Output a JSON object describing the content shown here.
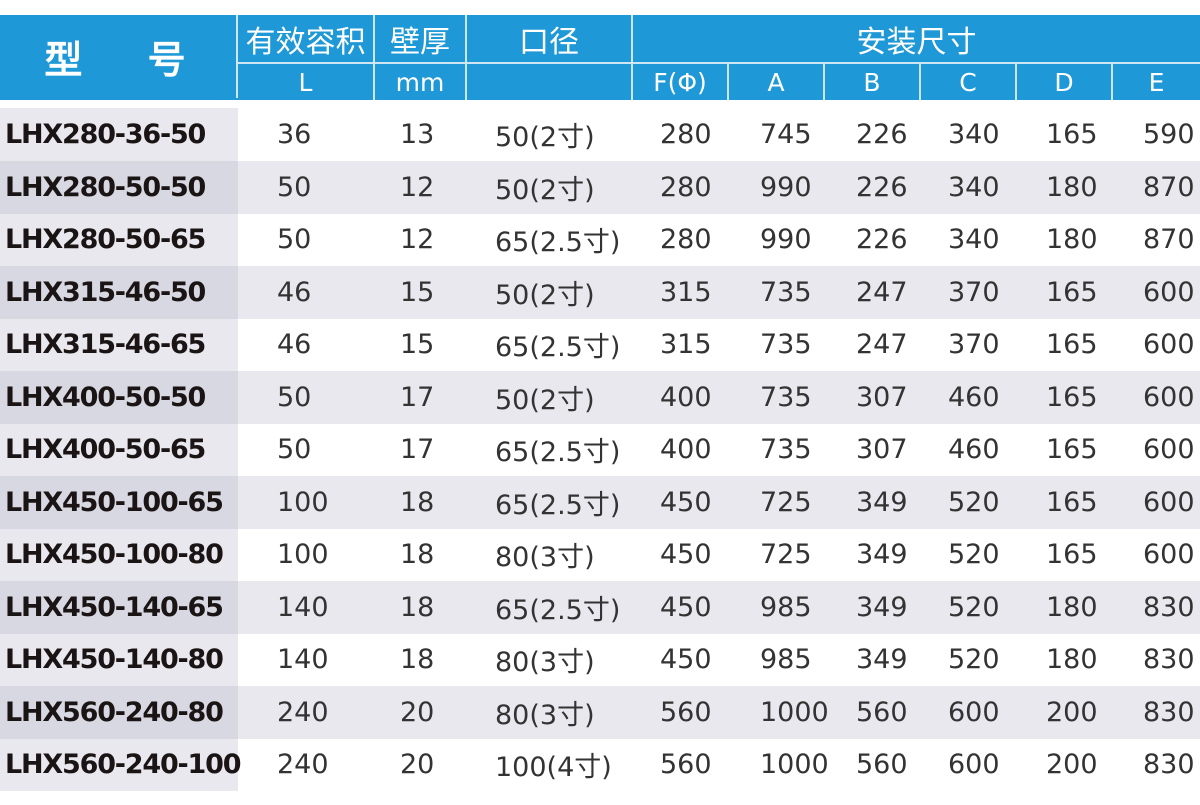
{
  "header": {
    "model": "型 号",
    "volume": "有效容积",
    "volume_unit": "L",
    "thickness": "壁厚",
    "thickness_unit": "mm",
    "port": "口径",
    "install": "安装尺寸",
    "install_cols": [
      "F(Φ)",
      "A",
      "B",
      "C",
      "D",
      "E"
    ]
  },
  "colors": {
    "header_bg": "#1e98d6",
    "row_alt": "#e9e8ee",
    "model_col": "#d8d8e2"
  },
  "rows": [
    [
      "LHX280-36-50",
      "36",
      "13",
      "50(2寸)",
      "280",
      "745",
      "226",
      "340",
      "165",
      "590"
    ],
    [
      "LHX280-50-50",
      "50",
      "12",
      "50(2寸)",
      "280",
      "990",
      "226",
      "340",
      "180",
      "870"
    ],
    [
      "LHX280-50-65",
      "50",
      "12",
      "65(2.5寸)",
      "280",
      "990",
      "226",
      "340",
      "180",
      "870"
    ],
    [
      "LHX315-46-50",
      "46",
      "15",
      "50(2寸)",
      "315",
      "735",
      "247",
      "370",
      "165",
      "600"
    ],
    [
      "LHX315-46-65",
      "46",
      "15",
      "65(2.5寸)",
      "315",
      "735",
      "247",
      "370",
      "165",
      "600"
    ],
    [
      "LHX400-50-50",
      "50",
      "17",
      "50(2寸)",
      "400",
      "735",
      "307",
      "460",
      "165",
      "600"
    ],
    [
      "LHX400-50-65",
      "50",
      "17",
      "65(2.5寸)",
      "400",
      "735",
      "307",
      "460",
      "165",
      "600"
    ],
    [
      "LHX450-100-65",
      "100",
      "18",
      "65(2.5寸)",
      "450",
      "725",
      "349",
      "520",
      "165",
      "600"
    ],
    [
      "LHX450-100-80",
      "100",
      "18",
      "80(3寸)",
      "450",
      "725",
      "349",
      "520",
      "165",
      "600"
    ],
    [
      "LHX450-140-65",
      "140",
      "18",
      "65(2.5寸)",
      "450",
      "985",
      "349",
      "520",
      "180",
      "830"
    ],
    [
      "LHX450-140-80",
      "140",
      "18",
      "80(3寸)",
      "450",
      "985",
      "349",
      "520",
      "180",
      "830"
    ],
    [
      "LHX560-240-80",
      "240",
      "20",
      "80(3寸)",
      "560",
      "1000",
      "560",
      "600",
      "200",
      "830"
    ],
    [
      "LHX560-240-100",
      "240",
      "20",
      "100(4寸)",
      "560",
      "1000",
      "560",
      "600",
      "200",
      "830"
    ]
  ]
}
